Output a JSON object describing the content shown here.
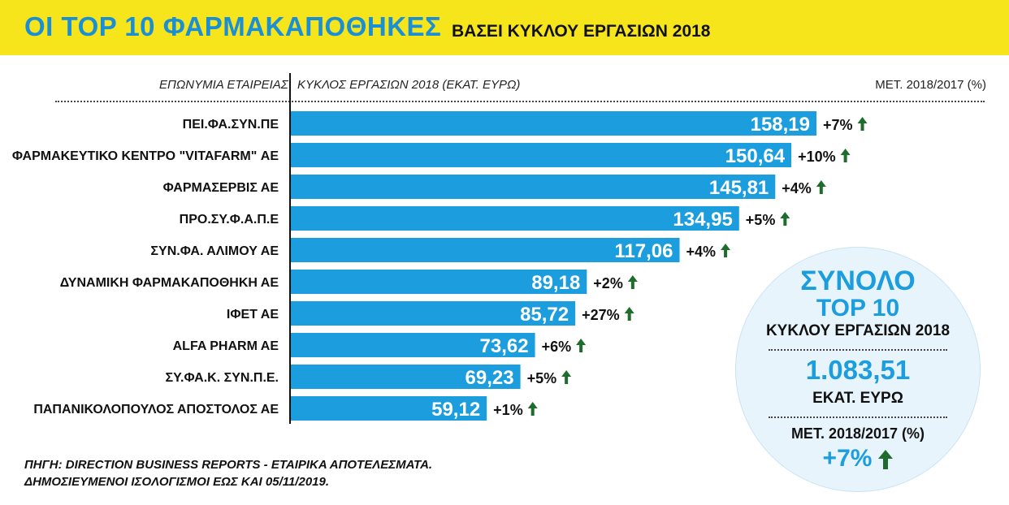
{
  "title": {
    "main": "ΟΙ TOP 10 ΦΑΡΜΑΚΑΠΟΘΗΚΕΣ",
    "sub": "ΒΑΣΕΙ ΚΥΚΛΟΥ ΕΡΓΑΣΙΩΝ 2018"
  },
  "headers": {
    "company": "ΕΠΩΝΥΜΙΑ ΕΤΑΙΡΕΙΑΣ",
    "turnover": "ΚΥΚΛΟΣ ΕΡΓΑΣΙΩΝ 2018 (ΕΚΑΤ. ΕΥΡΩ)",
    "change": "ΜΕΤ. 2018/2017 (%)"
  },
  "chart_data": {
    "type": "bar",
    "orientation": "horizontal",
    "title": "ΟΙ TOP 10 ΦΑΡΜΑΚΑΠΟΘΗΚΕΣ ΒΑΣΕΙ ΚΥΚΛΟΥ ΕΡΓΑΣΙΩΝ 2018",
    "xlabel": "ΚΥΚΛΟΣ ΕΡΓΑΣΙΩΝ 2018 (ΕΚΑΤ. ΕΥΡΩ)",
    "ylabel": "ΕΠΩΝΥΜΙΑ ΕΤΑΙΡΕΙΑΣ",
    "xlim": [
      0,
      158.19
    ],
    "categories": [
      "ΠΕΙ.ΦΑ.ΣΥΝ.ΠΕ",
      "ΦΑΡΜΑΚΕΥΤΙΚΟ ΚΕΝΤΡΟ \"VITAFARM\" ΑΕ",
      "ΦΑΡΜΑΣΕΡΒΙΣ ΑΕ",
      "ΠΡΟ.ΣΥ.Φ.Α.Π.Ε",
      "ΣΥΝ.ΦΑ. ΑΛΙΜΟΥ ΑΕ",
      "ΔΥΝΑΜΙΚΗ ΦΑΡΜΑΚΑΠΟΘΗΚΗ ΑΕ",
      "ΙΦΕΤ ΑΕ",
      "ALFA PHARM AE",
      "ΣΥ.ΦΑ.Κ. ΣΥΝ.Π.Ε.",
      "ΠΑΠΑΝΙΚΟΛΟΠΟΥΛΟΣ ΑΠΟΣΤΟΛΟΣ ΑΕ"
    ],
    "values": [
      158.19,
      150.64,
      145.81,
      134.95,
      117.06,
      89.18,
      85.72,
      73.62,
      69.23,
      59.12
    ],
    "value_labels": [
      "158,19",
      "150,64",
      "145,81",
      "134,95",
      "117,06",
      "89,18",
      "85,72",
      "73,62",
      "69,23",
      "59,12"
    ],
    "change_labels": [
      "+7%",
      "+10%",
      "+4%",
      "+5%",
      "+4%",
      "+2%",
      "+27%",
      "+6%",
      "+5%",
      "+1%"
    ],
    "change_direction": [
      "up",
      "up",
      "up",
      "up",
      "up",
      "up",
      "up",
      "up",
      "up",
      "up"
    ]
  },
  "summary": {
    "line1": "ΣΥΝΟΛΟ",
    "line2": "TOP 10",
    "line3": "ΚΥΚΛΟΥ ΕΡΓΑΣΙΩΝ 2018",
    "total": "1.083,51",
    "unit": "ΕΚΑΤ. ΕΥΡΩ",
    "change_label": "ΜΕΤ. 2018/2017 (%)",
    "change": "+7%"
  },
  "source": {
    "line1": "ΠΗΓΗ: DIRECTION BUSINESS REPORTS - ΕΤΑΙΡΙΚΑ ΑΠΟΤΕΛΕΣΜΑΤΑ.",
    "line2": "ΔΗΜΟΣΙΕΥΜΕΝΟΙ ΙΣΟΛΟΓΙΣΜΟΙ ΕΩΣ ΚΑΙ 05/11/2019."
  },
  "colors": {
    "banner": "#f6e51b",
    "bar": "#1c9ddd",
    "arrow": "#1f6d2c"
  }
}
